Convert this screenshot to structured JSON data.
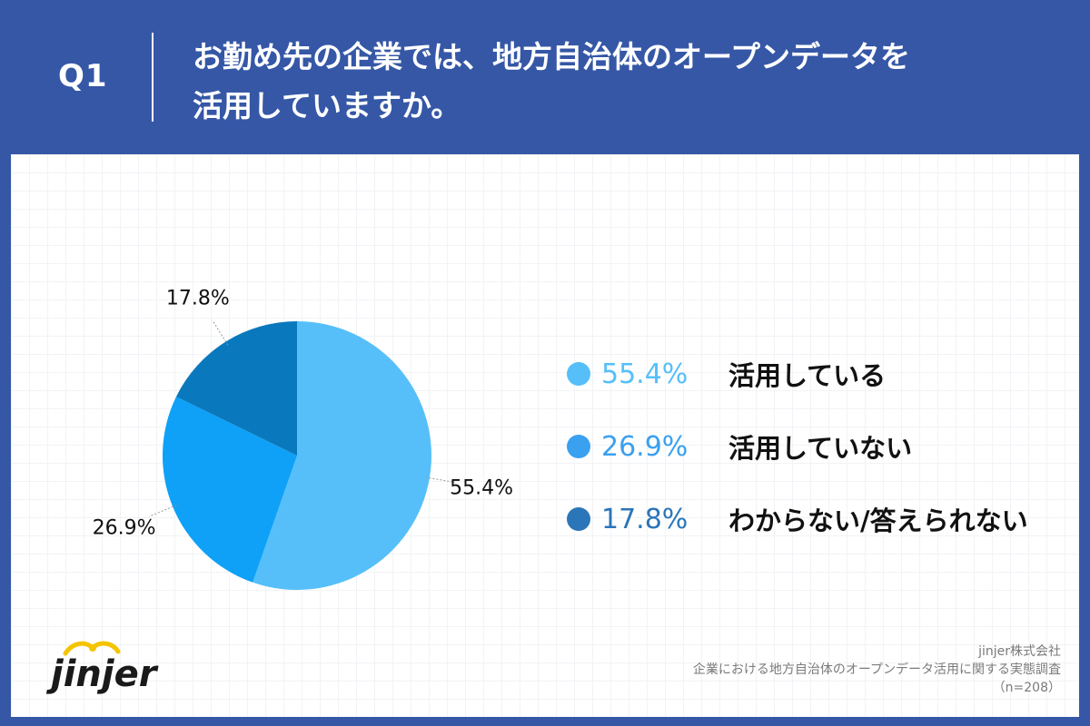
{
  "header": {
    "question_label": "Q1",
    "title_line1": "お勤め先の企業では、地方自治体のオープンデータを",
    "title_line2": "活用していますか。"
  },
  "chart_data": {
    "type": "pie",
    "slices": [
      {
        "label": "活用している",
        "value": 55.4,
        "display": "55.4%",
        "color": "#56bff9"
      },
      {
        "label": "活用していない",
        "value": 26.9,
        "display": "26.9%",
        "color": "#0ea1f7"
      },
      {
        "label": "わからない/答えられない",
        "value": 17.8,
        "display": "17.8%",
        "color": "#0a78bd"
      }
    ],
    "legend_placement": "right"
  },
  "legend": [
    {
      "pct": "55.4%",
      "text": "活用している",
      "color": "#56bff9"
    },
    {
      "pct": "26.9%",
      "text": "活用していない",
      "color": "#3aa0f0"
    },
    {
      "pct": "17.8%",
      "text": "わからない/答えられない",
      "color": "#2b76b8"
    }
  ],
  "logo": {
    "text": "jinjer"
  },
  "footer": {
    "line1": "jinjer株式会社",
    "line2": "企業における地方自治体のオープンデータ活用に関する実態調査",
    "line3": "（n=208）"
  }
}
